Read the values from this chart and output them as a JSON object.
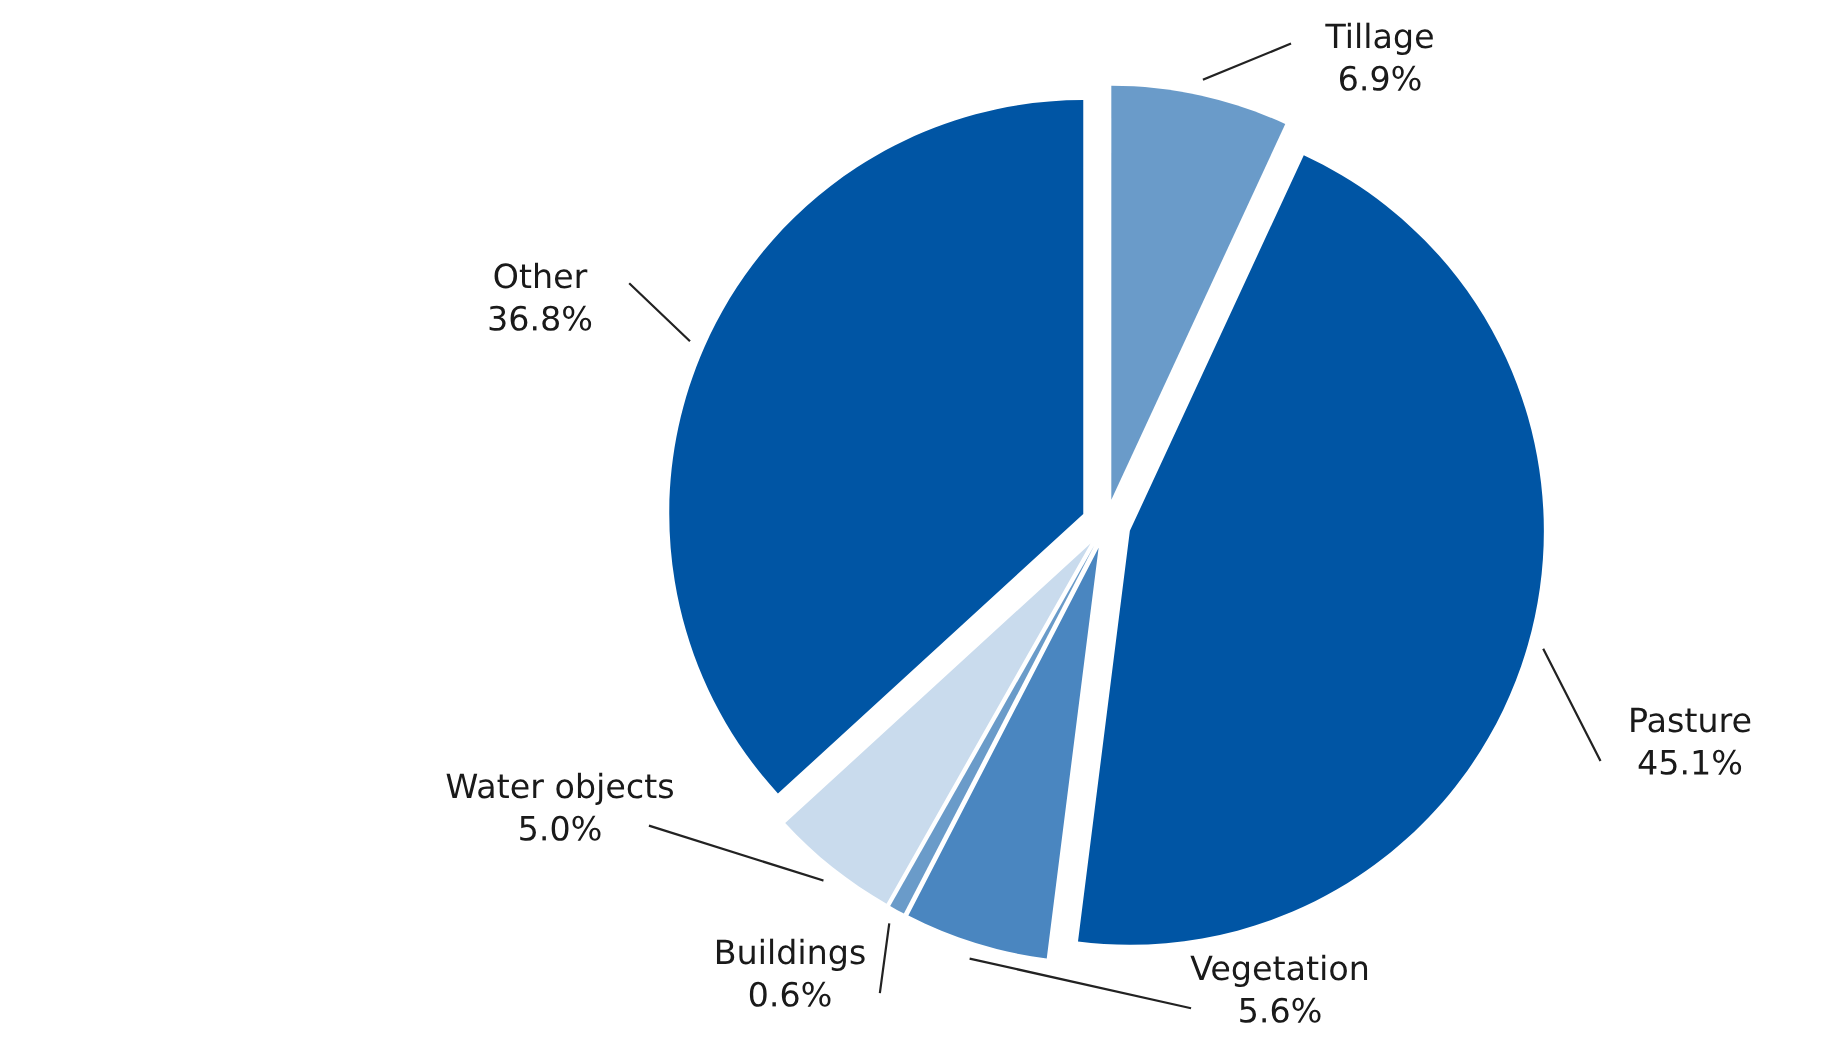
{
  "chart_data": {
    "type": "pie",
    "categories": [
      "Tillage",
      "Pasture",
      "Vegetation",
      "Buildings",
      "Water objects",
      "Other"
    ],
    "values": [
      6.9,
      45.1,
      5.6,
      0.6,
      5.0,
      36.8
    ],
    "value_labels": [
      "6.9%",
      "45.1%",
      "5.6%",
      "0.6%",
      "5.0%",
      "36.8%"
    ],
    "colors": [
      "#6a9bc9",
      "#0055a4",
      "#4a86c0",
      "#6a9bc9",
      "#c9dbed",
      "#0055a4"
    ],
    "legend": false
  }
}
